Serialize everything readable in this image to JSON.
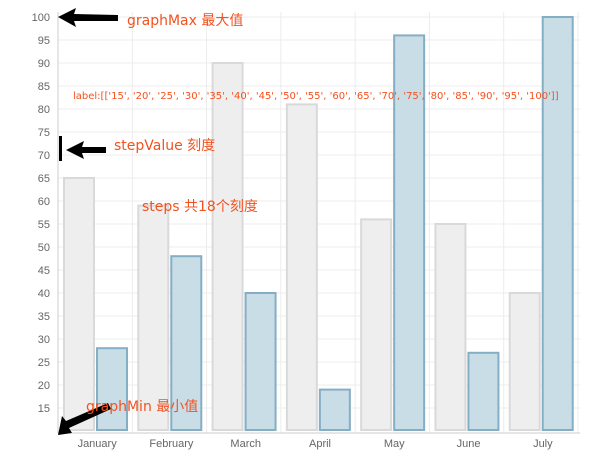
{
  "chart_data": {
    "type": "bar",
    "categories": [
      "January",
      "February",
      "March",
      "April",
      "May",
      "June",
      "July"
    ],
    "series": [
      {
        "values": [
          65,
          59,
          90,
          81,
          56,
          55,
          40
        ],
        "color": "#eeeeee",
        "stroke": "#d9d9d9"
      },
      {
        "values": [
          28,
          48,
          40,
          19,
          96,
          27,
          100
        ],
        "color": "#c9dde7",
        "stroke": "#85aec4"
      }
    ],
    "y_ticks": [
      "15",
      "20",
      "25",
      "30",
      "35",
      "40",
      "45",
      "50",
      "55",
      "60",
      "65",
      "70",
      "75",
      "80",
      "85",
      "90",
      "95",
      "100"
    ],
    "ylim": [
      10,
      100
    ],
    "grid": true,
    "annotations": {
      "graph_max": "graphMax 最大值",
      "label_list": "label:[['15', '20', '25', '30', '35', '40', '45', '50', '55', '60', '65', '70', '75', '80', '85', '90', '95', '100']]",
      "step_value": "stepValue 刻度",
      "steps": "steps 共18个刻度",
      "graph_min": "graphMin 最小值"
    }
  },
  "colors": {
    "annotation": "#f4511e",
    "grid": "#ececec",
    "axis": "#cccccc"
  }
}
